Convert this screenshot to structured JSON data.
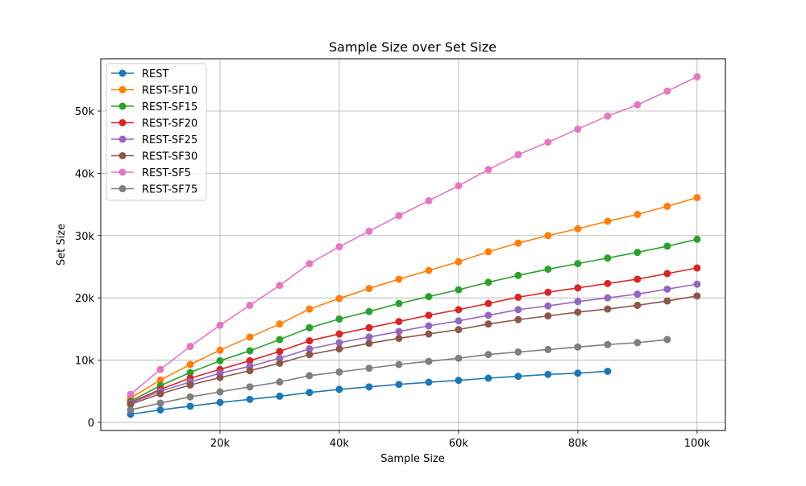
{
  "chart_data": {
    "type": "line",
    "title": "Sample Size over Set Size",
    "xlabel": "Sample Size",
    "ylabel": "Set Size",
    "xlim": [
      0,
      104750
    ],
    "ylim": [
      -1300,
      58400
    ],
    "xticks": [
      {
        "value": 20000,
        "label": "20k"
      },
      {
        "value": 40000,
        "label": "40k"
      },
      {
        "value": 60000,
        "label": "60k"
      },
      {
        "value": 80000,
        "label": "80k"
      },
      {
        "value": 100000,
        "label": "100k"
      }
    ],
    "yticks": [
      {
        "value": 0,
        "label": "0"
      },
      {
        "value": 10000,
        "label": "10k"
      },
      {
        "value": 20000,
        "label": "20k"
      },
      {
        "value": 30000,
        "label": "30k"
      },
      {
        "value": 40000,
        "label": "40k"
      },
      {
        "value": 50000,
        "label": "50k"
      }
    ],
    "grid": true,
    "legend_position": "top-left",
    "series": [
      {
        "name": "REST",
        "color": "#1f77b4",
        "x": [
          5000,
          10000,
          15000,
          20000,
          25000,
          30000,
          35000,
          40000,
          45000,
          50000,
          55000,
          60000,
          65000,
          70000,
          75000,
          80000,
          85000
        ],
        "y": [
          1300,
          2000,
          2600,
          3200,
          3700,
          4200,
          4800,
          5300,
          5700,
          6100,
          6450,
          6750,
          7100,
          7400,
          7700,
          7900,
          8200
        ]
      },
      {
        "name": "REST-SF10",
        "color": "#ff7f0e",
        "x": [
          5000,
          10000,
          15000,
          20000,
          25000,
          30000,
          35000,
          40000,
          45000,
          50000,
          55000,
          60000,
          65000,
          70000,
          75000,
          80000,
          85000,
          90000,
          95000,
          100000
        ],
        "y": [
          3900,
          6800,
          9300,
          11600,
          13700,
          15800,
          18200,
          19900,
          21500,
          23000,
          24400,
          25800,
          27400,
          28800,
          30000,
          31100,
          32300,
          33400,
          34700,
          36100
        ]
      },
      {
        "name": "REST-SF15",
        "color": "#2ca02c",
        "x": [
          5000,
          10000,
          15000,
          20000,
          25000,
          30000,
          35000,
          40000,
          45000,
          50000,
          55000,
          60000,
          65000,
          70000,
          75000,
          80000,
          85000,
          90000,
          95000,
          100000
        ],
        "y": [
          3400,
          5900,
          8000,
          9900,
          11500,
          13300,
          15200,
          16600,
          17800,
          19100,
          20200,
          21300,
          22500,
          23600,
          24600,
          25500,
          26400,
          27300,
          28300,
          29400
        ]
      },
      {
        "name": "REST-SF20",
        "color": "#d62728",
        "x": [
          5000,
          10000,
          15000,
          20000,
          25000,
          30000,
          35000,
          40000,
          45000,
          50000,
          55000,
          60000,
          65000,
          70000,
          75000,
          80000,
          85000,
          90000,
          95000,
          100000
        ],
        "y": [
          3200,
          5300,
          7100,
          8500,
          9900,
          11400,
          13100,
          14200,
          15200,
          16200,
          17200,
          18100,
          19100,
          20100,
          20900,
          21600,
          22300,
          23000,
          23900,
          24800
        ]
      },
      {
        "name": "REST-SF25",
        "color": "#9467bd",
        "x": [
          5000,
          10000,
          15000,
          20000,
          25000,
          30000,
          35000,
          40000,
          45000,
          50000,
          55000,
          60000,
          65000,
          70000,
          75000,
          80000,
          85000,
          90000,
          95000,
          100000
        ],
        "y": [
          3100,
          5000,
          6500,
          7900,
          9000,
          10300,
          11800,
          12800,
          13700,
          14600,
          15500,
          16300,
          17200,
          18100,
          18700,
          19400,
          20000,
          20600,
          21400,
          22200
        ]
      },
      {
        "name": "REST-SF30",
        "color": "#8c564b",
        "x": [
          5000,
          10000,
          15000,
          20000,
          25000,
          30000,
          35000,
          40000,
          45000,
          50000,
          55000,
          60000,
          65000,
          70000,
          75000,
          80000,
          85000,
          90000,
          95000,
          100000
        ],
        "y": [
          2900,
          4600,
          6000,
          7200,
          8300,
          9500,
          10900,
          11800,
          12700,
          13500,
          14200,
          14900,
          15800,
          16500,
          17100,
          17700,
          18200,
          18800,
          19500,
          20300
        ]
      },
      {
        "name": "REST-SF5",
        "color": "#e377c2",
        "x": [
          5000,
          10000,
          15000,
          20000,
          25000,
          30000,
          35000,
          40000,
          45000,
          50000,
          55000,
          60000,
          65000,
          70000,
          75000,
          80000,
          85000,
          90000,
          95000,
          100000
        ],
        "y": [
          4500,
          8500,
          12200,
          15600,
          18800,
          22000,
          25500,
          28200,
          30700,
          33200,
          35600,
          38000,
          40600,
          43000,
          45000,
          47100,
          49200,
          51000,
          53200,
          55500
        ]
      },
      {
        "name": "REST-SF75",
        "color": "#7f7f7f",
        "x": [
          5000,
          10000,
          15000,
          20000,
          25000,
          30000,
          35000,
          40000,
          45000,
          50000,
          55000,
          60000,
          65000,
          70000,
          75000,
          80000,
          85000,
          90000,
          95000
        ],
        "y": [
          2000,
          3100,
          4100,
          4900,
          5700,
          6500,
          7500,
          8100,
          8700,
          9300,
          9800,
          10300,
          10900,
          11300,
          11700,
          12100,
          12500,
          12800,
          13300
        ]
      }
    ]
  }
}
